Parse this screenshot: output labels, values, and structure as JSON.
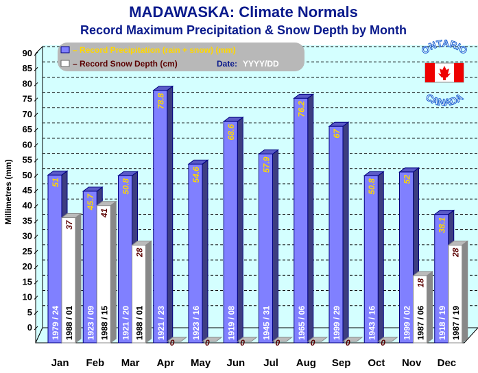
{
  "chart_data": {
    "type": "bar",
    "title": "MADAWASKA: Climate Normals",
    "subtitle": "Record Maximum Precipitation & Snow Depth by Month",
    "ylabel": "Millimetres (mm)",
    "ylim": [
      0,
      90
    ],
    "yticks": [
      0,
      5,
      10,
      15,
      20,
      25,
      30,
      35,
      40,
      45,
      50,
      55,
      60,
      65,
      70,
      75,
      80,
      85,
      90
    ],
    "grid": true,
    "legend_placement": "top-left",
    "categories": [
      "Jan",
      "Feb",
      "Mar",
      "Apr",
      "May",
      "Jun",
      "Jul",
      "Aug",
      "Sep",
      "Oct",
      "Nov",
      "Dec"
    ],
    "series": [
      {
        "name": "– Record Precipitation (rain + snow) (mm)",
        "color": "#8080ff",
        "values": [
          51,
          45.7,
          50.8,
          78.8,
          54.6,
          68.6,
          57.9,
          76.2,
          67,
          50.8,
          52,
          38.1
        ],
        "labels": [
          "51",
          "45.7",
          "50.8",
          "78.8",
          "54.6",
          "68.6",
          "57.9",
          "76.2",
          "67",
          "50.8",
          "52",
          "38.1"
        ],
        "dates": [
          "1979 / 24",
          "1923 / 09",
          "1921 / 20",
          "1921 / 23",
          "1923 / 16",
          "1919 / 08",
          "1945 / 31",
          "1965 / 06",
          "1999 / 29",
          "1943 / 16",
          "1999 / 02",
          "1918 / 19"
        ]
      },
      {
        "name": "– Record Snow Depth (cm)",
        "color": "#ffffff",
        "values": [
          37,
          41,
          28,
          0,
          0,
          0,
          0,
          0,
          0,
          0,
          18,
          28
        ],
        "labels": [
          "37",
          "41",
          "28",
          "0",
          "0",
          "0",
          "0",
          "0",
          "0",
          "0",
          "18",
          "28"
        ],
        "dates": [
          "1988 / 01",
          "1988 / 15",
          "1988 / 01",
          "",
          "",
          "",
          "",
          "",
          "",
          "",
          "1987 / 06",
          "1987 / 19"
        ]
      }
    ],
    "date_legend_label": "Date:",
    "date_legend_format": "YYYY/DD"
  },
  "logo": {
    "top": "ONTARIO",
    "bottom": "CANADA"
  },
  "colors": {
    "background": "#d4ffff",
    "title": "#0a1a8c",
    "value_label": "#ffd700",
    "snow_label": "#5a0000"
  }
}
